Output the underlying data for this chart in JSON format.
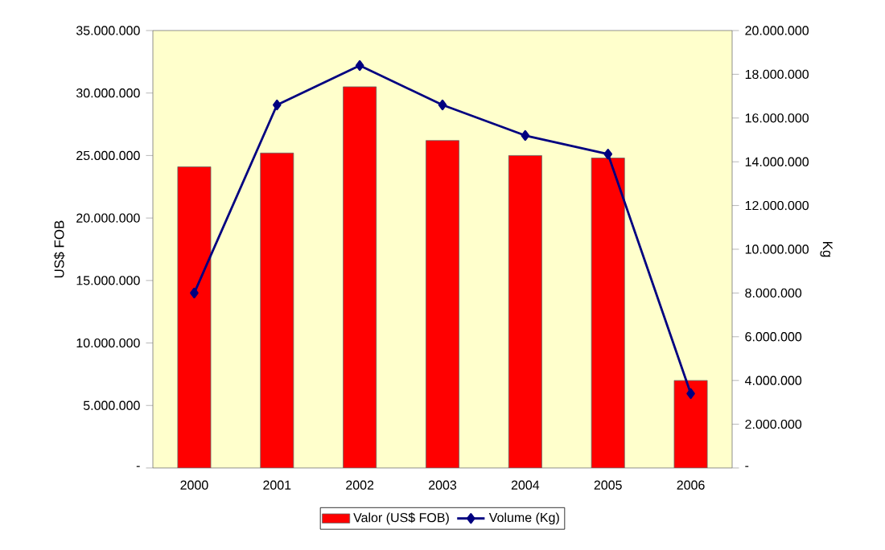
{
  "chart_data": {
    "type": "bar",
    "categories": [
      "2000",
      "2001",
      "2002",
      "2003",
      "2004",
      "2005",
      "2006"
    ],
    "ylabel": "US$ FOB",
    "y2label": "Kg",
    "ylim": [
      0,
      35000000
    ],
    "yticks": [
      {
        "value": 0,
        "label": "-"
      },
      {
        "value": 5000000,
        "label": "5.000.000"
      },
      {
        "value": 10000000,
        "label": "10.000.000"
      },
      {
        "value": 15000000,
        "label": "15.000.000"
      },
      {
        "value": 20000000,
        "label": "20.000.000"
      },
      {
        "value": 25000000,
        "label": "25.000.000"
      },
      {
        "value": 30000000,
        "label": "30.000.000"
      },
      {
        "value": 35000000,
        "label": "35.000.000"
      }
    ],
    "y2lim": [
      0,
      20000000
    ],
    "y2ticks": [
      {
        "value": 0,
        "label": "-"
      },
      {
        "value": 2000000,
        "label": "2.000.000"
      },
      {
        "value": 4000000,
        "label": "4.000.000"
      },
      {
        "value": 6000000,
        "label": "6.000.000"
      },
      {
        "value": 8000000,
        "label": "8.000.000"
      },
      {
        "value": 10000000,
        "label": "10.000.000"
      },
      {
        "value": 12000000,
        "label": "12.000.000"
      },
      {
        "value": 14000000,
        "label": "14.000.000"
      },
      {
        "value": 16000000,
        "label": "16.000.000"
      },
      {
        "value": 18000000,
        "label": "18.000.000"
      },
      {
        "value": 20000000,
        "label": "20.000.000"
      }
    ],
    "series": [
      {
        "name": "Valor (US$ FOB)",
        "color": "#ff0000",
        "values": [
          24100000,
          25200000,
          30500000,
          26200000,
          25000000,
          24800000,
          7000000
        ]
      },
      {
        "name": "Volume (Kg)",
        "type": "line",
        "axis": "y2",
        "color": "#000080",
        "marker": "diamond",
        "values": [
          8000000,
          16600000,
          18400000,
          16600000,
          15200000,
          14350000,
          3400000
        ]
      }
    ],
    "legend": "bottom",
    "grid": false
  }
}
